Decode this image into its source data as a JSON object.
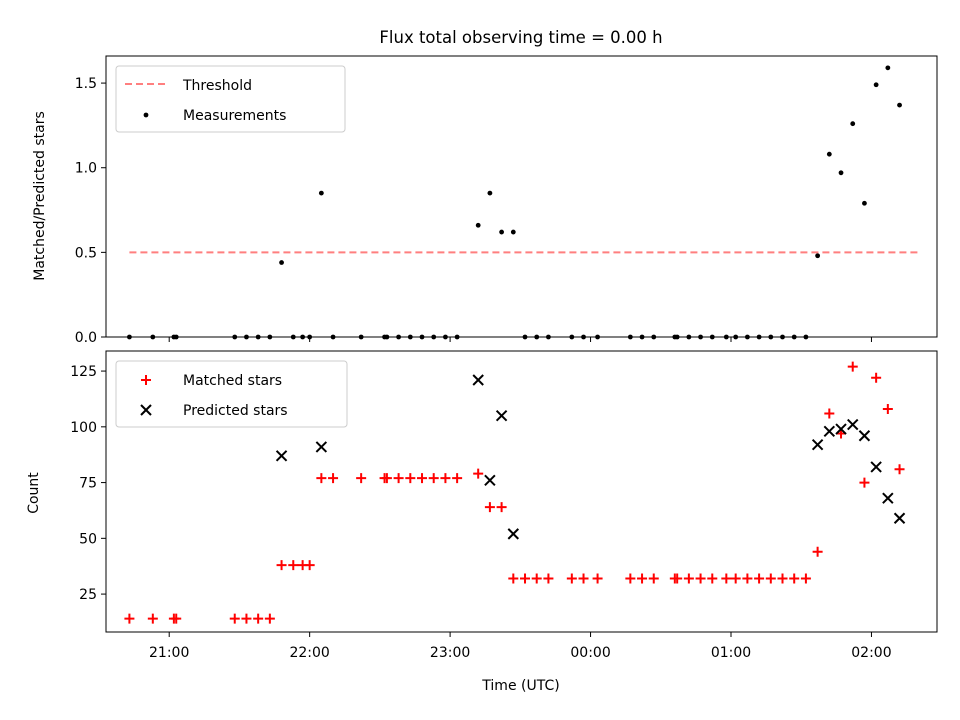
{
  "title": "Flux total observing time = 0.00 h",
  "xlabel": "Time (UTC)",
  "x_ticks": [
    {
      "t": 0.0,
      "label": "21:00"
    },
    {
      "t": 1.0,
      "label": "22:00"
    },
    {
      "t": 2.0,
      "label": "23:00"
    },
    {
      "t": 3.0,
      "label": "00:00"
    },
    {
      "t": 4.0,
      "label": "01:00"
    },
    {
      "t": 5.0,
      "label": "02:00"
    }
  ],
  "colors": {
    "threshold": "#ff7f7f",
    "measurements": "#000000",
    "matched": "#ff0000",
    "predicted": "#000000"
  },
  "chart_data": [
    {
      "type": "scatter",
      "ylabel": "Matched/Predicted stars",
      "xlim": [
        "20:33",
        "02:28"
      ],
      "ylim": [
        0,
        1.66
      ],
      "y_ticks": [
        {
          "v": 0.0,
          "label": "0.0"
        },
        {
          "v": 0.5,
          "label": "0.5"
        },
        {
          "v": 1.0,
          "label": "1.0"
        },
        {
          "v": 1.5,
          "label": "1.5"
        }
      ],
      "legend": [
        "Threshold",
        "Measurements"
      ],
      "legend_position": "upper-left",
      "threshold": {
        "name": "Threshold",
        "value": 0.5,
        "from": "20:43",
        "to": "02:20"
      },
      "series": [
        {
          "name": "Measurements",
          "marker": "dot",
          "points": [
            [
              "20:43",
              0
            ],
            [
              "20:53",
              0
            ],
            [
              "21:02",
              0
            ],
            [
              "21:03",
              0
            ],
            [
              "21:28",
              0
            ],
            [
              "21:33",
              0
            ],
            [
              "21:38",
              0
            ],
            [
              "21:43",
              0
            ],
            [
              "21:48",
              0.44
            ],
            [
              "21:53",
              0
            ],
            [
              "21:57",
              0
            ],
            [
              "22:00",
              0
            ],
            [
              "22:05",
              0.85
            ],
            [
              "22:10",
              0
            ],
            [
              "22:22",
              0
            ],
            [
              "22:32",
              0
            ],
            [
              "22:33",
              0
            ],
            [
              "22:38",
              0
            ],
            [
              "22:43",
              0
            ],
            [
              "22:48",
              0
            ],
            [
              "22:53",
              0
            ],
            [
              "22:58",
              0
            ],
            [
              "23:03",
              0
            ],
            [
              "23:12",
              0.66
            ],
            [
              "23:17",
              0.85
            ],
            [
              "23:22",
              0.62
            ],
            [
              "23:27",
              0.62
            ],
            [
              "23:32",
              0
            ],
            [
              "23:37",
              0
            ],
            [
              "23:42",
              0
            ],
            [
              "23:52",
              0
            ],
            [
              "23:57",
              0
            ],
            [
              "00:03",
              0
            ],
            [
              "00:17",
              0
            ],
            [
              "00:22",
              0
            ],
            [
              "00:27",
              0
            ],
            [
              "00:36",
              0
            ],
            [
              "00:37",
              0
            ],
            [
              "00:42",
              0
            ],
            [
              "00:47",
              0
            ],
            [
              "00:52",
              0
            ],
            [
              "00:58",
              0
            ],
            [
              "01:02",
              0
            ],
            [
              "01:07",
              0
            ],
            [
              "01:12",
              0
            ],
            [
              "01:17",
              0
            ],
            [
              "01:22",
              0
            ],
            [
              "01:27",
              0
            ],
            [
              "01:32",
              0
            ],
            [
              "01:37",
              0.48
            ],
            [
              "01:42",
              1.08
            ],
            [
              "01:47",
              0.97
            ],
            [
              "01:52",
              1.26
            ],
            [
              "01:57",
              0.79
            ],
            [
              "02:02",
              1.49
            ],
            [
              "02:07",
              1.59
            ],
            [
              "02:12",
              1.37
            ]
          ]
        }
      ]
    },
    {
      "type": "scatter",
      "ylabel": "Count",
      "xlim": [
        "20:33",
        "02:28"
      ],
      "ylim": [
        8,
        134
      ],
      "y_ticks": [
        {
          "v": 25,
          "label": "25"
        },
        {
          "v": 50,
          "label": "50"
        },
        {
          "v": 75,
          "label": "75"
        },
        {
          "v": 100,
          "label": "100"
        },
        {
          "v": 125,
          "label": "125"
        }
      ],
      "legend": [
        "Matched stars",
        "Predicted stars"
      ],
      "legend_position": "upper-left",
      "series": [
        {
          "name": "Matched stars",
          "marker": "plus",
          "points": [
            [
              "20:43",
              14
            ],
            [
              "20:53",
              14
            ],
            [
              "21:02",
              14
            ],
            [
              "21:03",
              14
            ],
            [
              "21:28",
              14
            ],
            [
              "21:33",
              14
            ],
            [
              "21:38",
              14
            ],
            [
              "21:43",
              14
            ],
            [
              "21:48",
              38
            ],
            [
              "21:53",
              38
            ],
            [
              "21:57",
              38
            ],
            [
              "22:00",
              38
            ],
            [
              "22:05",
              77
            ],
            [
              "22:10",
              77
            ],
            [
              "22:22",
              77
            ],
            [
              "22:32",
              77
            ],
            [
              "22:33",
              77
            ],
            [
              "22:38",
              77
            ],
            [
              "22:43",
              77
            ],
            [
              "22:48",
              77
            ],
            [
              "22:53",
              77
            ],
            [
              "22:58",
              77
            ],
            [
              "23:03",
              77
            ],
            [
              "23:12",
              79
            ],
            [
              "23:17",
              64
            ],
            [
              "23:22",
              64
            ],
            [
              "23:27",
              32
            ],
            [
              "23:32",
              32
            ],
            [
              "23:37",
              32
            ],
            [
              "23:42",
              32
            ],
            [
              "23:52",
              32
            ],
            [
              "23:57",
              32
            ],
            [
              "00:03",
              32
            ],
            [
              "00:17",
              32
            ],
            [
              "00:22",
              32
            ],
            [
              "00:27",
              32
            ],
            [
              "00:36",
              32
            ],
            [
              "00:37",
              32
            ],
            [
              "00:42",
              32
            ],
            [
              "00:47",
              32
            ],
            [
              "00:52",
              32
            ],
            [
              "00:58",
              32
            ],
            [
              "01:02",
              32
            ],
            [
              "01:07",
              32
            ],
            [
              "01:12",
              32
            ],
            [
              "01:17",
              32
            ],
            [
              "01:22",
              32
            ],
            [
              "01:27",
              32
            ],
            [
              "01:32",
              32
            ],
            [
              "01:37",
              44
            ],
            [
              "01:42",
              106
            ],
            [
              "01:47",
              97
            ],
            [
              "01:52",
              127
            ],
            [
              "01:57",
              75
            ],
            [
              "02:02",
              122
            ],
            [
              "02:07",
              108
            ],
            [
              "02:12",
              81
            ]
          ]
        },
        {
          "name": "Predicted stars",
          "marker": "x",
          "points": [
            [
              "21:48",
              87
            ],
            [
              "22:05",
              91
            ],
            [
              "23:12",
              121
            ],
            [
              "23:17",
              76
            ],
            [
              "23:22",
              105
            ],
            [
              "23:27",
              52
            ],
            [
              "01:37",
              92
            ],
            [
              "01:42",
              98
            ],
            [
              "01:47",
              99
            ],
            [
              "01:52",
              101
            ],
            [
              "01:57",
              96
            ],
            [
              "02:02",
              82
            ],
            [
              "02:07",
              68
            ],
            [
              "02:12",
              59
            ]
          ]
        }
      ]
    }
  ]
}
